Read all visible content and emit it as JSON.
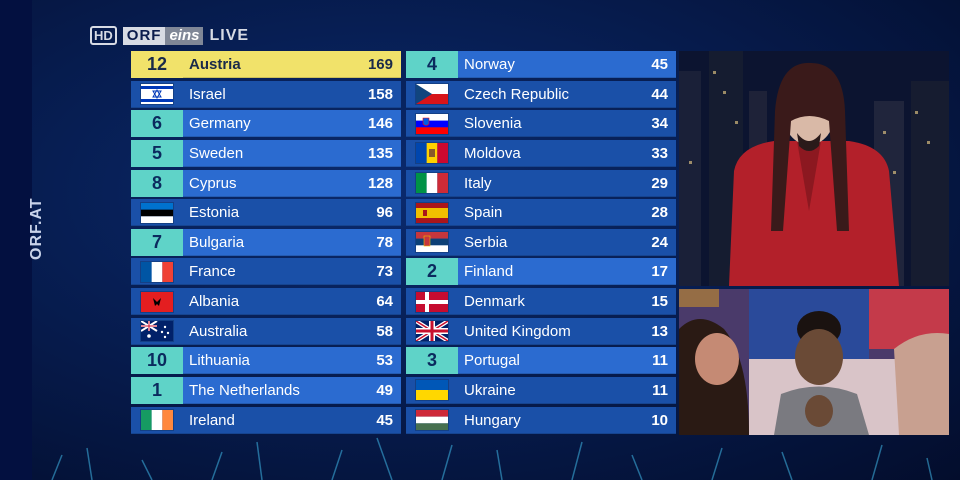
{
  "channel": {
    "hd": "HD",
    "brand": "ORF",
    "brand_suffix": "eins",
    "live": "LIVE"
  },
  "side_watermark": "ORF.AT",
  "results_left": [
    {
      "points": "12",
      "country": "Austria",
      "score": "169",
      "style": "top",
      "flag": "at"
    },
    {
      "points": "",
      "country": "Israel",
      "score": "158",
      "style": "plain",
      "flag": "il"
    },
    {
      "points": "6",
      "country": "Germany",
      "score": "146",
      "style": "tel",
      "flag": ""
    },
    {
      "points": "5",
      "country": "Sweden",
      "score": "135",
      "style": "tel",
      "flag": ""
    },
    {
      "points": "8",
      "country": "Cyprus",
      "score": "128",
      "style": "tel",
      "flag": ""
    },
    {
      "points": "",
      "country": "Estonia",
      "score": "96",
      "style": "plain",
      "flag": "ee"
    },
    {
      "points": "7",
      "country": "Bulgaria",
      "score": "78",
      "style": "tel",
      "flag": ""
    },
    {
      "points": "",
      "country": "France",
      "score": "73",
      "style": "plain",
      "flag": "fr"
    },
    {
      "points": "",
      "country": "Albania",
      "score": "64",
      "style": "plain",
      "flag": "al"
    },
    {
      "points": "",
      "country": "Australia",
      "score": "58",
      "style": "plain",
      "flag": "au"
    },
    {
      "points": "10",
      "country": "Lithuania",
      "score": "53",
      "style": "tel",
      "flag": ""
    },
    {
      "points": "1",
      "country": "The Netherlands",
      "score": "49",
      "style": "tel",
      "flag": ""
    },
    {
      "points": "",
      "country": "Ireland",
      "score": "45",
      "style": "plain",
      "flag": "ie"
    }
  ],
  "results_right": [
    {
      "points": "4",
      "country": "Norway",
      "score": "45",
      "style": "tel",
      "flag": ""
    },
    {
      "points": "",
      "country": "Czech Republic",
      "score": "44",
      "style": "plain",
      "flag": "cz"
    },
    {
      "points": "",
      "country": "Slovenia",
      "score": "34",
      "style": "plain",
      "flag": "si"
    },
    {
      "points": "",
      "country": "Moldova",
      "score": "33",
      "style": "plain",
      "flag": "md"
    },
    {
      "points": "",
      "country": "Italy",
      "score": "29",
      "style": "plain",
      "flag": "it"
    },
    {
      "points": "",
      "country": "Spain",
      "score": "28",
      "style": "plain",
      "flag": "es"
    },
    {
      "points": "",
      "country": "Serbia",
      "score": "24",
      "style": "plain",
      "flag": "rs"
    },
    {
      "points": "2",
      "country": "Finland",
      "score": "17",
      "style": "tel",
      "flag": ""
    },
    {
      "points": "",
      "country": "Denmark",
      "score": "15",
      "style": "plain",
      "flag": "dk"
    },
    {
      "points": "",
      "country": "United Kingdom",
      "score": "13",
      "style": "plain",
      "flag": "gb"
    },
    {
      "points": "3",
      "country": "Portugal",
      "score": "11",
      "style": "tel",
      "flag": ""
    },
    {
      "points": "",
      "country": "Ukraine",
      "score": "11",
      "style": "plain",
      "flag": "ua"
    },
    {
      "points": "",
      "country": "Hungary",
      "score": "10",
      "style": "plain",
      "flag": "hu"
    }
  ],
  "colors": {
    "leader_row": "#f1e26a",
    "points_cell": "#5fd3c8",
    "row_plain": "#1a50a8",
    "row_awarded": "#2b6bd0"
  }
}
